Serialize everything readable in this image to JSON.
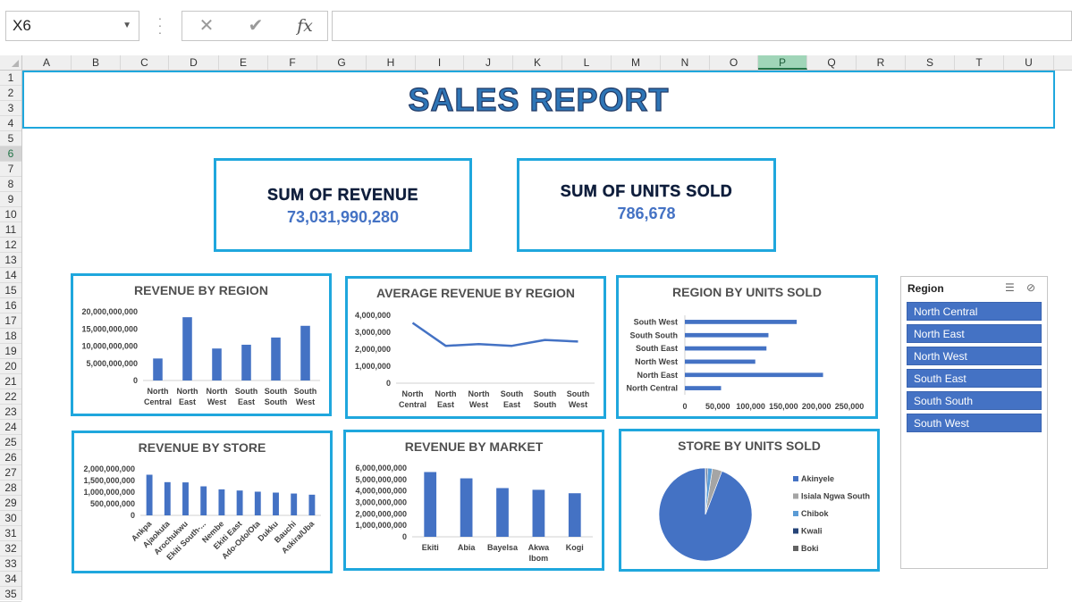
{
  "formula_bar": {
    "name_box": "X6",
    "cancel_icon": "x-icon",
    "enter_icon": "check-icon",
    "function_label": "fx",
    "formula": ""
  },
  "sheet": {
    "columns": [
      "A",
      "B",
      "C",
      "D",
      "E",
      "F",
      "G",
      "H",
      "I",
      "J",
      "K",
      "L",
      "M",
      "N",
      "O",
      "P",
      "Q",
      "R",
      "S",
      "T",
      "U"
    ],
    "selected_column": "P",
    "rows": [
      "1",
      "2",
      "3",
      "4",
      "5",
      "6",
      "7",
      "8",
      "9",
      "10",
      "11",
      "12",
      "13",
      "14",
      "15",
      "16",
      "17",
      "18",
      "19",
      "20",
      "21",
      "22",
      "23",
      "24",
      "25",
      "26",
      "27",
      "28",
      "29",
      "30",
      "31",
      "32",
      "33",
      "34",
      "35"
    ],
    "selected_row": "6"
  },
  "report": {
    "title": "SALES REPORT",
    "revenue_label": "SUM OF REVENUE",
    "revenue_value": "73,031,990,280",
    "units_label": "SUM OF UNITS SOLD",
    "units_value": "786,678"
  },
  "slicer": {
    "title": "Region",
    "multiselect_icon": "multi-select-icon",
    "clear_filter_icon": "clear-filter-icon",
    "items": [
      "North Central",
      "North East",
      "North West",
      "South East",
      "South South",
      "South West"
    ]
  },
  "chart_data": [
    {
      "id": "revenue_by_region",
      "type": "bar",
      "title": "REVENUE BY REGION",
      "categories": [
        "North Central",
        "North East",
        "North West",
        "South East",
        "South South",
        "South West"
      ],
      "category_lines": [
        [
          "North",
          "Central"
        ],
        [
          "North",
          "East"
        ],
        [
          "North",
          "West"
        ],
        [
          "South",
          "East"
        ],
        [
          "South",
          "South"
        ],
        [
          "South",
          "West"
        ]
      ],
      "values": [
        6400000000,
        18400000000,
        9300000000,
        10400000000,
        12500000000,
        15900000000
      ],
      "yticks": [
        0,
        5000000000,
        10000000000,
        15000000000,
        20000000000
      ],
      "ytick_labels": [
        "0",
        "5,000,000,000",
        "10,000,000,000",
        "15,000,000,000",
        "20,000,000,000"
      ],
      "ylim": [
        0,
        20000000000
      ],
      "color": "#4472c4"
    },
    {
      "id": "avg_revenue_by_region",
      "type": "line",
      "title": "AVERAGE REVENUE BY REGION",
      "categories": [
        "North Central",
        "North East",
        "North West",
        "South East",
        "South South",
        "South West"
      ],
      "category_lines": [
        [
          "North",
          "Central"
        ],
        [
          "North",
          "East"
        ],
        [
          "North",
          "West"
        ],
        [
          "South",
          "East"
        ],
        [
          "South",
          "South"
        ],
        [
          "South",
          "West"
        ]
      ],
      "values": [
        3550000,
        2200000,
        2300000,
        2200000,
        2550000,
        2450000
      ],
      "yticks": [
        0,
        1000000,
        2000000,
        3000000,
        4000000
      ],
      "ytick_labels": [
        "0",
        "1,000,000",
        "2,000,000",
        "3,000,000",
        "4,000,000"
      ],
      "ylim": [
        0,
        4000000
      ],
      "color": "#4472c4"
    },
    {
      "id": "region_by_units_sold",
      "type": "bar",
      "orientation": "horizontal",
      "title": "REGION BY UNITS SOLD",
      "categories": [
        "South West",
        "South South",
        "South East",
        "North West",
        "North East",
        "North Central"
      ],
      "values": [
        170000,
        127000,
        124000,
        107000,
        210000,
        55000
      ],
      "xticks": [
        0,
        50000,
        100000,
        150000,
        200000,
        250000
      ],
      "xtick_labels": [
        "0",
        "50,000",
        "100,000",
        "150,000",
        "200,000",
        "250,000"
      ],
      "xlim": [
        0,
        250000
      ],
      "color": "#4472c4"
    },
    {
      "id": "revenue_by_store",
      "type": "bar",
      "title": "REVENUE BY STORE",
      "categories": [
        "Ankpa",
        "Ajaokuta",
        "Arochukwu",
        "Ekiti South-...",
        "Nembe",
        "Ekiti East",
        "Ado-Odo/Ota",
        "Dukku",
        "Bauchi",
        "Askira/Uba"
      ],
      "values": [
        1750000000,
        1430000000,
        1420000000,
        1250000000,
        1120000000,
        1070000000,
        1020000000,
        980000000,
        940000000,
        890000000
      ],
      "yticks": [
        0,
        500000000,
        1000000000,
        1500000000,
        2000000000
      ],
      "ytick_labels": [
        "0",
        "500,000,000",
        "1,000,000,000",
        "1,500,000,000",
        "2,000,000,000"
      ],
      "ylim": [
        0,
        2000000000
      ],
      "color": "#4472c4"
    },
    {
      "id": "revenue_by_market",
      "type": "bar",
      "title": "REVENUE BY MARKET",
      "categories": [
        "Ekiti",
        "Abia",
        "Bayelsa",
        "Akwa Ibom",
        "Kogi"
      ],
      "category_lines": [
        [
          "Ekiti"
        ],
        [
          "Abia"
        ],
        [
          "Bayelsa"
        ],
        [
          "Akwa",
          "Ibom"
        ],
        [
          "Kogi"
        ]
      ],
      "values": [
        5650000000,
        5100000000,
        4250000000,
        4100000000,
        3800000000
      ],
      "yticks": [
        0,
        1000000000,
        2000000000,
        3000000000,
        4000000000,
        5000000000,
        6000000000
      ],
      "ytick_labels": [
        "0",
        "1,000,000,000",
        "2,000,000,000",
        "3,000,000,000",
        "4,000,000,000",
        "5,000,000,000",
        "6,000,000,000"
      ],
      "ylim": [
        0,
        6000000000
      ],
      "color": "#4472c4"
    },
    {
      "id": "store_by_units_sold",
      "type": "pie",
      "title": "STORE BY UNITS SOLD",
      "categories": [
        "Akinyele",
        "Isiala Ngwa South",
        "Chibok",
        "Kwali",
        "Boki"
      ],
      "values": [
        94.2,
        3.4,
        1.6,
        0.5,
        0.3
      ],
      "colors": [
        "#4472c4",
        "#a5a5a5",
        "#5b9bd5",
        "#264478",
        "#636363"
      ]
    }
  ]
}
